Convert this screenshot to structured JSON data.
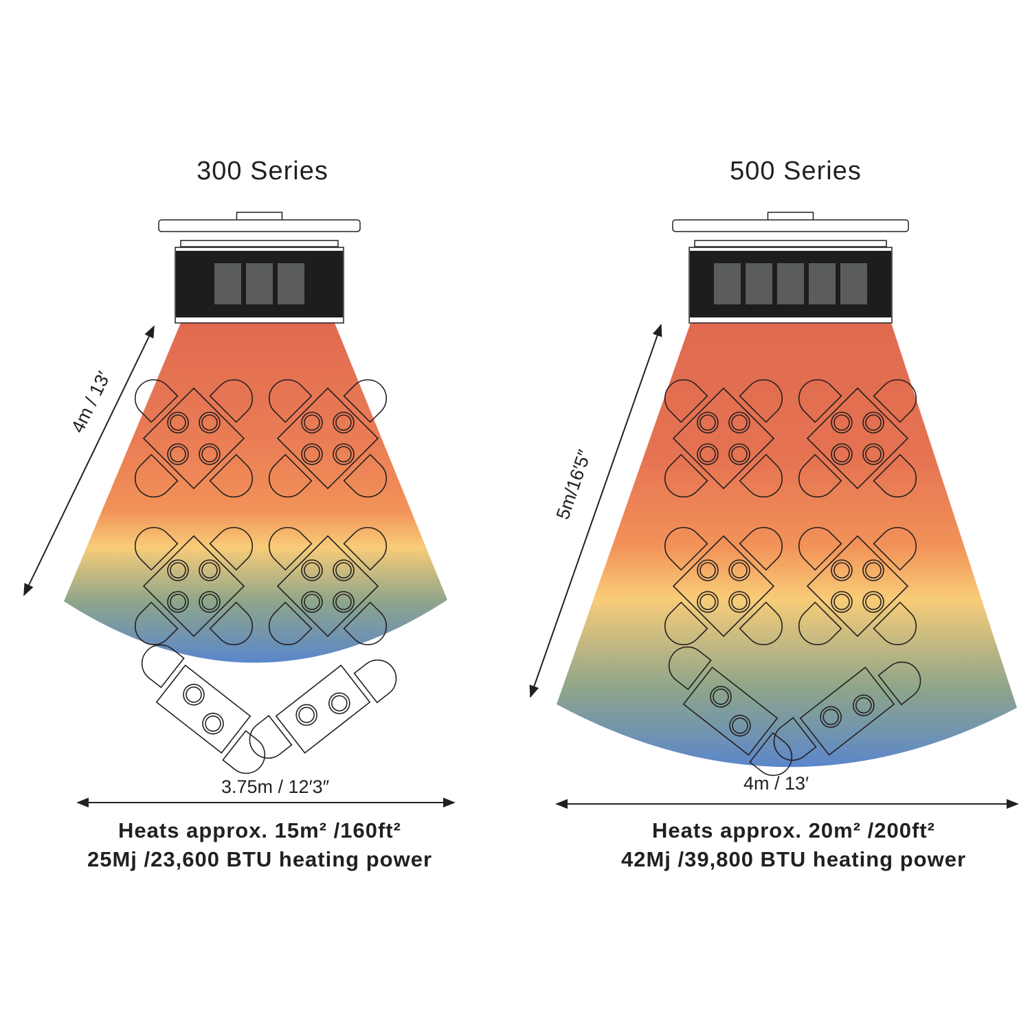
{
  "colors": {
    "top": "#e06a50",
    "orange": "#f29259",
    "yellow": "#f8cc78",
    "green": "#8ea58a",
    "blue": "#5a86cc",
    "line": "#231f20",
    "heater": "#1e1c1c",
    "panel": "#5a5c5d"
  },
  "series": [
    {
      "title": "300 Series",
      "height_label": "4m / 13′",
      "width_label": "3.75m / 12′3″",
      "spec_line1": "Heats approx. 15m²  /160ft²",
      "spec_line2": "25Mj /23,600 BTU heating power",
      "panels": 3
    },
    {
      "title": "500 Series",
      "height_label": "5m/16′5″",
      "width_label": "4m / 13′",
      "spec_line1": "Heats approx. 20m² /200ft²",
      "spec_line2": "42Mj /39,800 BTU heating power",
      "panels": 5
    }
  ]
}
